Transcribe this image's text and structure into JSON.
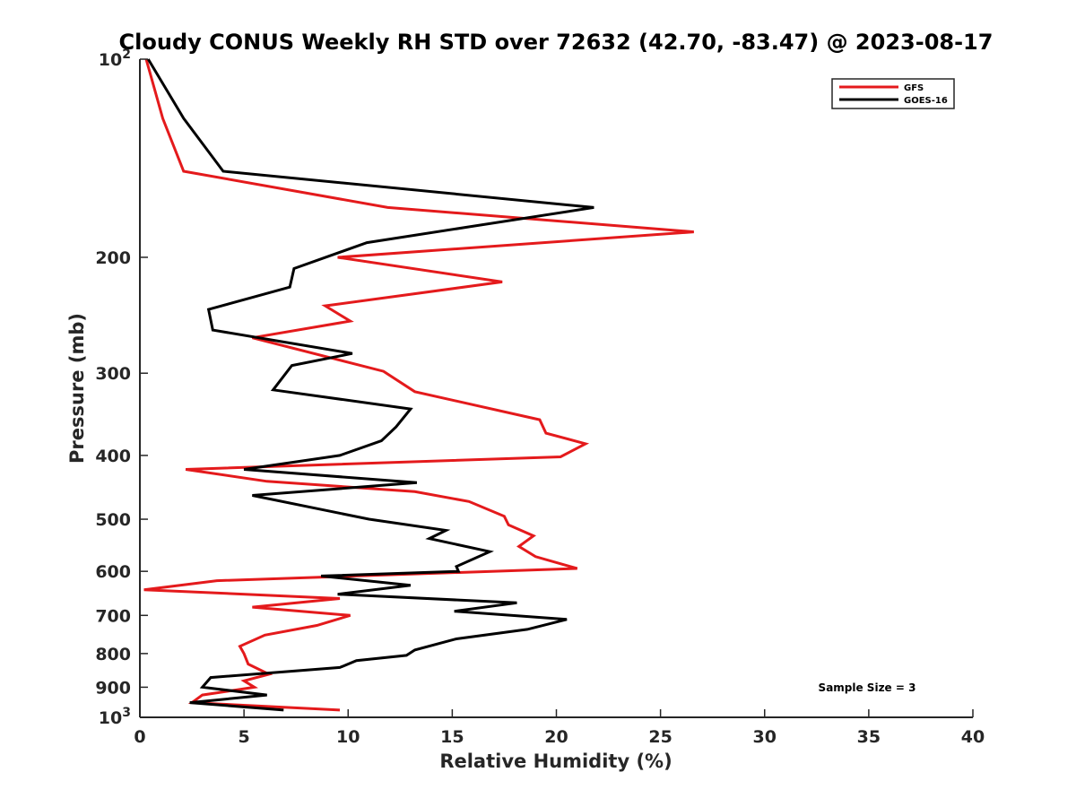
{
  "chart_data": {
    "type": "line",
    "title": "Cloudy CONUS Weekly RH STD over 72632 (42.70, -83.47) @ 2023-08-17",
    "xlabel": "Relative Humidity (%)",
    "ylabel": "Pressure (mb)",
    "xlim": [
      0,
      40
    ],
    "ylim": [
      100,
      1000
    ],
    "yscale": "log",
    "y_reversed": true,
    "x_ticks": [
      "0",
      "5",
      "10",
      "15",
      "20",
      "25",
      "30",
      "35",
      "40"
    ],
    "y_ticks": [
      {
        "value": 100,
        "base": "10",
        "exp": "2"
      },
      {
        "value": 200,
        "label": "200"
      },
      {
        "value": 300,
        "label": "300"
      },
      {
        "value": 400,
        "label": "400"
      },
      {
        "value": 500,
        "label": "500"
      },
      {
        "value": 600,
        "label": "600"
      },
      {
        "value": 700,
        "label": "700"
      },
      {
        "value": 800,
        "label": "800"
      },
      {
        "value": 900,
        "label": "900"
      },
      {
        "value": 1000,
        "base": "10",
        "exp": "3"
      }
    ],
    "grid": false,
    "legend_position": "top-right",
    "annotation": "Sample Size = 3",
    "series": [
      {
        "name": "GFS",
        "color": "#e41a1c",
        "x": [
          0.3,
          1.1,
          2.1,
          11.9,
          26.6,
          9.5,
          17.4,
          8.9,
          10.1,
          5.4,
          11.7,
          13.2,
          19.2,
          19.5,
          21.4,
          20.2,
          2.2,
          6.1,
          13.2,
          15.8,
          17.5,
          17.7,
          18.9,
          18.2,
          19.0,
          21.0,
          3.7,
          0.2,
          9.6,
          5.4,
          10.1,
          8.5,
          6.0,
          4.8,
          5.0,
          5.2,
          6.2,
          5.0,
          5.5,
          3.0,
          2.5,
          9.6
        ],
        "y": [
          100,
          123,
          148,
          168,
          183,
          200,
          218,
          237,
          250,
          265,
          298,
          320,
          353,
          370,
          384,
          402,
          420,
          438,
          454,
          470,
          495,
          510,
          530,
          550,
          570,
          594,
          620,
          640,
          660,
          680,
          700,
          725,
          750,
          780,
          800,
          830,
          860,
          880,
          900,
          925,
          950,
          975
        ]
      },
      {
        "name": "GOES-16",
        "color": "#000000",
        "x": [
          0.4,
          2.1,
          4.0,
          21.8,
          10.9,
          7.4,
          7.2,
          3.3,
          3.5,
          10.2,
          7.3,
          6.4,
          13.0,
          12.3,
          11.6,
          9.6,
          5.0,
          13.3,
          5.4,
          11.0,
          14.7,
          13.9,
          16.8,
          15.2,
          15.3,
          8.7,
          13.0,
          9.5,
          18.1,
          15.1,
          20.5,
          18.6,
          15.2,
          13.2,
          12.8,
          10.4,
          9.6,
          3.4,
          3.0,
          6.1,
          2.4,
          6.9
        ],
        "y": [
          100,
          123,
          148,
          168,
          190,
          208,
          222,
          240,
          258,
          280,
          292,
          318,
          340,
          362,
          380,
          400,
          420,
          440,
          460,
          500,
          520,
          535,
          560,
          590,
          600,
          610,
          630,
          650,
          670,
          690,
          710,
          735,
          760,
          790,
          805,
          820,
          840,
          870,
          900,
          925,
          950,
          975
        ]
      }
    ]
  }
}
